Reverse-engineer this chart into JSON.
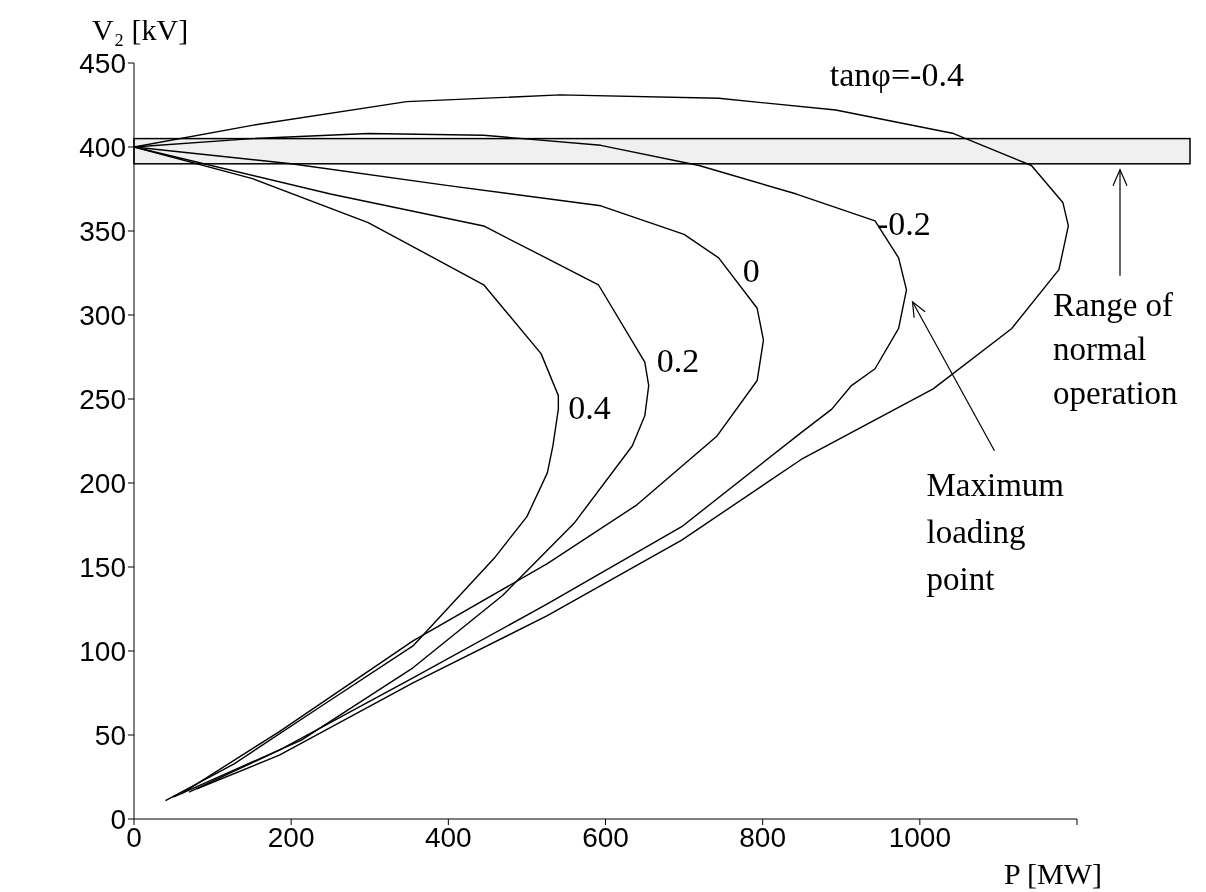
{
  "chart_data": {
    "type": "line",
    "xlabel": "P [MW]",
    "ylabel": "V₂ [kV]",
    "xlim": [
      0,
      1200
    ],
    "ylim": [
      0,
      450
    ],
    "xticks": [
      0,
      200,
      400,
      600,
      800,
      1000,
      {
        "value": 1200,
        "label": null
      }
    ],
    "yticks": [
      0,
      50,
      100,
      150,
      200,
      250,
      300,
      350,
      400,
      450
    ],
    "series": [
      {
        "name": "0.4",
        "color": "#000000",
        "x": [
          0,
          152,
          298,
          445,
          518,
          540,
          540,
          533,
          526,
          500,
          458,
          355,
          241,
          128,
          40
        ],
        "values": [
          400,
          381,
          355,
          318,
          277,
          252,
          244,
          222,
          206,
          180,
          155,
          103,
          68,
          33,
          11
        ]
      },
      {
        "name": "0.2",
        "color": "#000000",
        "x": [
          0,
          250,
          445,
          591,
          650,
          655,
          650,
          634,
          560,
          469,
          355,
          213,
          50
        ],
        "values": [
          400,
          372,
          353,
          318,
          272,
          258,
          240,
          222,
          176,
          133,
          90,
          47,
          13
        ]
      },
      {
        "name": "0",
        "color": "#000000",
        "x": [
          0,
          200,
          400,
          594,
          700,
          744,
          793,
          801,
          793,
          742,
          640,
          526,
          355,
          185,
          60
        ],
        "values": [
          400,
          390,
          377,
          365,
          348,
          334,
          304,
          285,
          261,
          228,
          187,
          152,
          106,
          52,
          15
        ]
      },
      {
        "name": "-0.2",
        "color": "#000000",
        "x": [
          0,
          150,
          298,
          445,
          594,
          719,
          843,
          943,
          973,
          983,
          973,
          943,
          913,
          888,
          849,
          697,
          526,
          355,
          185,
          70
        ],
        "values": [
          400,
          405,
          408,
          407,
          401,
          389,
          372,
          356,
          334,
          315,
          292,
          268,
          258,
          244,
          230,
          174,
          128,
          84,
          41,
          16
        ]
      },
      {
        "name": "tanφ=-0.4",
        "color": "#000000",
        "x": [
          0,
          152,
          347,
          542,
          744,
          893,
          1043,
          1142,
          1182,
          1189,
          1177,
          1117,
          1017,
          849,
          697,
          526,
          355,
          185,
          80
        ],
        "values": [
          400,
          413,
          427,
          431,
          429,
          422,
          408,
          389,
          367,
          353,
          327,
          292,
          256,
          214,
          166,
          121,
          81,
          38,
          18
        ]
      }
    ],
    "bands": [
      {
        "axis": "y",
        "from": 390,
        "to": 405,
        "label": "Range of normal operation",
        "color": "#f0f0f0"
      }
    ],
    "annotations": [
      "Maximum loading point"
    ]
  }
}
